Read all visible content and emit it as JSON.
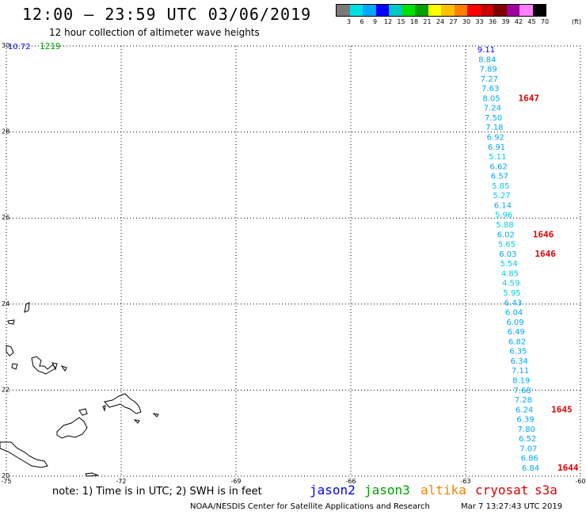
{
  "header": {
    "title": "12:00 – 23:59 UTC 03/06/2019",
    "subtitle": "12 hour collection of altimeter wave heights"
  },
  "color_scale": {
    "ticks": [
      "3",
      "6",
      "9",
      "12",
      "15",
      "18",
      "21",
      "24",
      "27",
      "30",
      "33",
      "36",
      "39",
      "42",
      "45",
      "70"
    ],
    "unit": "(ft)",
    "colors": [
      "#7a7a7a",
      "#00e0e0",
      "#00a8ff",
      "#0000ff",
      "#00c8c8",
      "#00e000",
      "#00a000",
      "#ffff00",
      "#ffc000",
      "#ff8000",
      "#ff0000",
      "#c80000",
      "#800000",
      "#a000a0",
      "#ff80ff",
      "#000000"
    ]
  },
  "map": {
    "lon_labels": [
      "-75",
      "-72",
      "-69",
      "-66",
      "-63",
      "-60"
    ],
    "lat_labels": [
      "30",
      "28",
      "26",
      "24",
      "22",
      "20"
    ],
    "satellite_colors": {
      "jason2": "#0000ff",
      "jason3": "#00a000",
      "altika": "#ff8000",
      "cryosat": "#e00000",
      "s3a": "#e00000"
    },
    "top_left_value": "10.72",
    "top_left_time": "1219",
    "track_values": [
      "9.11",
      "8.84",
      "7.89",
      "7.27",
      "7.63",
      "8.05",
      "7.24",
      "7.50",
      "7.18",
      "6.92",
      "6.91",
      "5.11",
      "6.62",
      "6.57",
      "5.85",
      "5.27",
      "6.14",
      "5.96",
      "5.88",
      "6.02",
      "5.65",
      "6.03",
      "5.54",
      "4.85",
      "4.59",
      "5.95",
      "6.43",
      "6.04",
      "6.09",
      "6.49",
      "6.82",
      "6.35",
      "6.34",
      "7.11",
      "8.19",
      "7.68",
      "7.28",
      "6.24",
      "6.39",
      "7.80",
      "6.52",
      "7.07",
      "6.86",
      "6.84"
    ],
    "time_labels": [
      "1647",
      "1646",
      "1646",
      "1645",
      "1644"
    ]
  },
  "footer": {
    "note": "note: 1) Time is in UTC; 2) SWH is in feet",
    "legend": [
      "jason2",
      "jason3",
      "altika",
      "cryosat",
      "s3a"
    ],
    "credit": "NOAA/NESDIS Center for Satellite Applications and Research",
    "timestamp": "Mar  7 13:27:43 UTC 2019"
  }
}
